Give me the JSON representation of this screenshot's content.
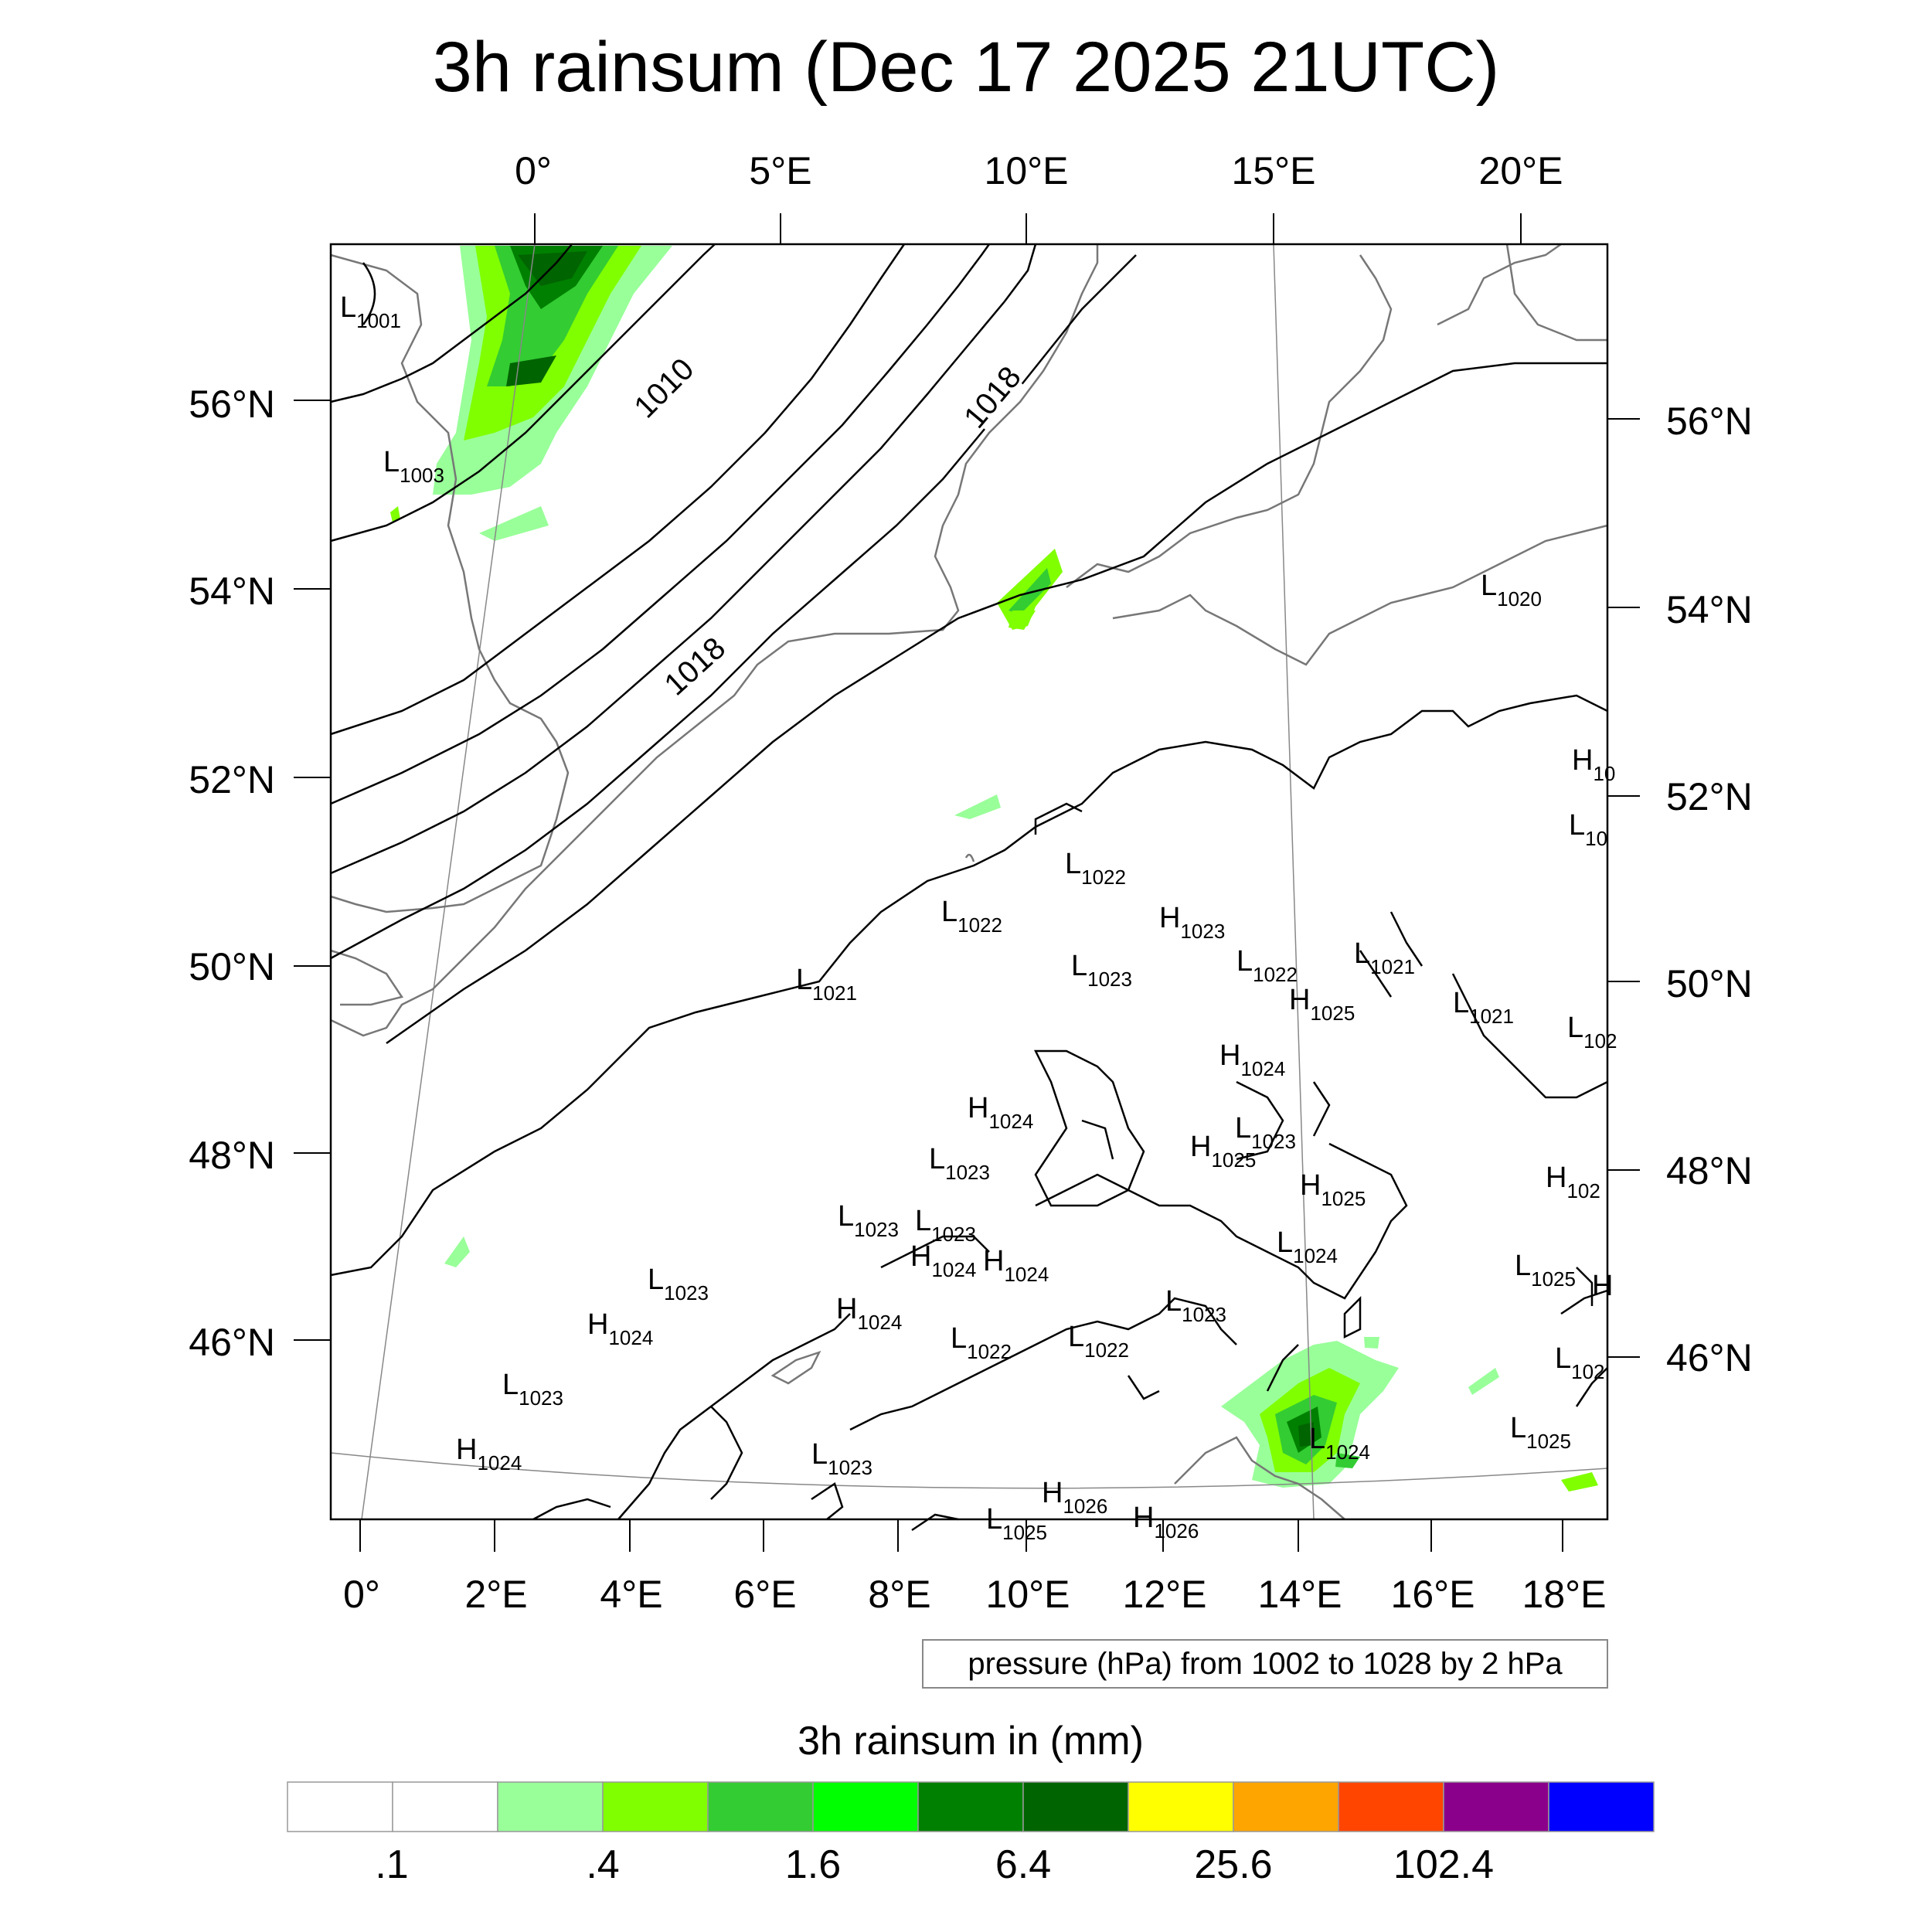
{
  "title": "3h rainsum (Dec 17 2025 21UTC)",
  "top_lon_labels": [
    "0°",
    "5°E",
    "10°E",
    "15°E",
    "20°E"
  ],
  "left_lat_labels": [
    "56°N",
    "54°N",
    "52°N",
    "50°N",
    "48°N",
    "46°N"
  ],
  "right_lat_labels": [
    "56°N",
    "54°N",
    "52°N",
    "50°N",
    "48°N",
    "46°N"
  ],
  "bottom_lon_labels": [
    "0°",
    "2°E",
    "4°E",
    "6°E",
    "8°E",
    "10°E",
    "12°E",
    "14°E",
    "16°E",
    "18°E"
  ],
  "contour_note": "pressure (hPa) from 1002 to 1028 by 2 hPa",
  "isobar_labels": [
    "1010",
    "1018",
    "1018"
  ],
  "pressure_centers": [
    {
      "type": "L",
      "value": "1001"
    },
    {
      "type": "L",
      "value": "1003"
    },
    {
      "type": "L",
      "value": "1020"
    },
    {
      "type": "H",
      "value": "10"
    },
    {
      "type": "L",
      "value": "10"
    },
    {
      "type": "L",
      "value": "1022"
    },
    {
      "type": "L",
      "value": "1022"
    },
    {
      "type": "H",
      "value": "1023"
    },
    {
      "type": "L",
      "value": "1021"
    },
    {
      "type": "L",
      "value": "1023"
    },
    {
      "type": "L",
      "value": "1022"
    },
    {
      "type": "L",
      "value": "1021"
    },
    {
      "type": "H",
      "value": "1025"
    },
    {
      "type": "L",
      "value": "1021"
    },
    {
      "type": "L",
      "value": "102"
    },
    {
      "type": "H",
      "value": "1024"
    },
    {
      "type": "H",
      "value": "1024"
    },
    {
      "type": "L",
      "value": "1023"
    },
    {
      "type": "H",
      "value": "1025"
    },
    {
      "type": "L",
      "value": "1023"
    },
    {
      "type": "H",
      "value": "1025"
    },
    {
      "type": "H",
      "value": "102"
    },
    {
      "type": "L",
      "value": "1023"
    },
    {
      "type": "L",
      "value": "1023"
    },
    {
      "type": "L",
      "value": "1024"
    },
    {
      "type": "H",
      "value": "1024"
    },
    {
      "type": "H",
      "value": "1024"
    },
    {
      "type": "L",
      "value": "1023"
    },
    {
      "type": "L",
      "value": "1025"
    },
    {
      "type": "H",
      "value": ""
    },
    {
      "type": "H",
      "value": "1024"
    },
    {
      "type": "H",
      "value": "1024"
    },
    {
      "type": "L",
      "value": "1023"
    },
    {
      "type": "L",
      "value": "1022"
    },
    {
      "type": "L",
      "value": "1022"
    },
    {
      "type": "L",
      "value": "102"
    },
    {
      "type": "L",
      "value": "1023"
    },
    {
      "type": "L",
      "value": "1024"
    },
    {
      "type": "L",
      "value": "1025"
    },
    {
      "type": "H",
      "value": "1024"
    },
    {
      "type": "L",
      "value": "1023"
    },
    {
      "type": "H",
      "value": "1026"
    },
    {
      "type": "L",
      "value": "1025"
    },
    {
      "type": "H",
      "value": "1026"
    }
  ],
  "colorbar": {
    "title": "3h rainsum in (mm)",
    "colors": [
      "#ffffff",
      "#ffffff",
      "#99ff99",
      "#80ff00",
      "#33cc33",
      "#00ff00",
      "#008000",
      "#006400",
      "#ffff00",
      "#ffa500",
      "#ff4500",
      "#8b008b",
      "#0000ff"
    ],
    "tick_labels": [
      ".1",
      ".4",
      "1.6",
      "6.4",
      "25.6",
      "102.4"
    ]
  }
}
